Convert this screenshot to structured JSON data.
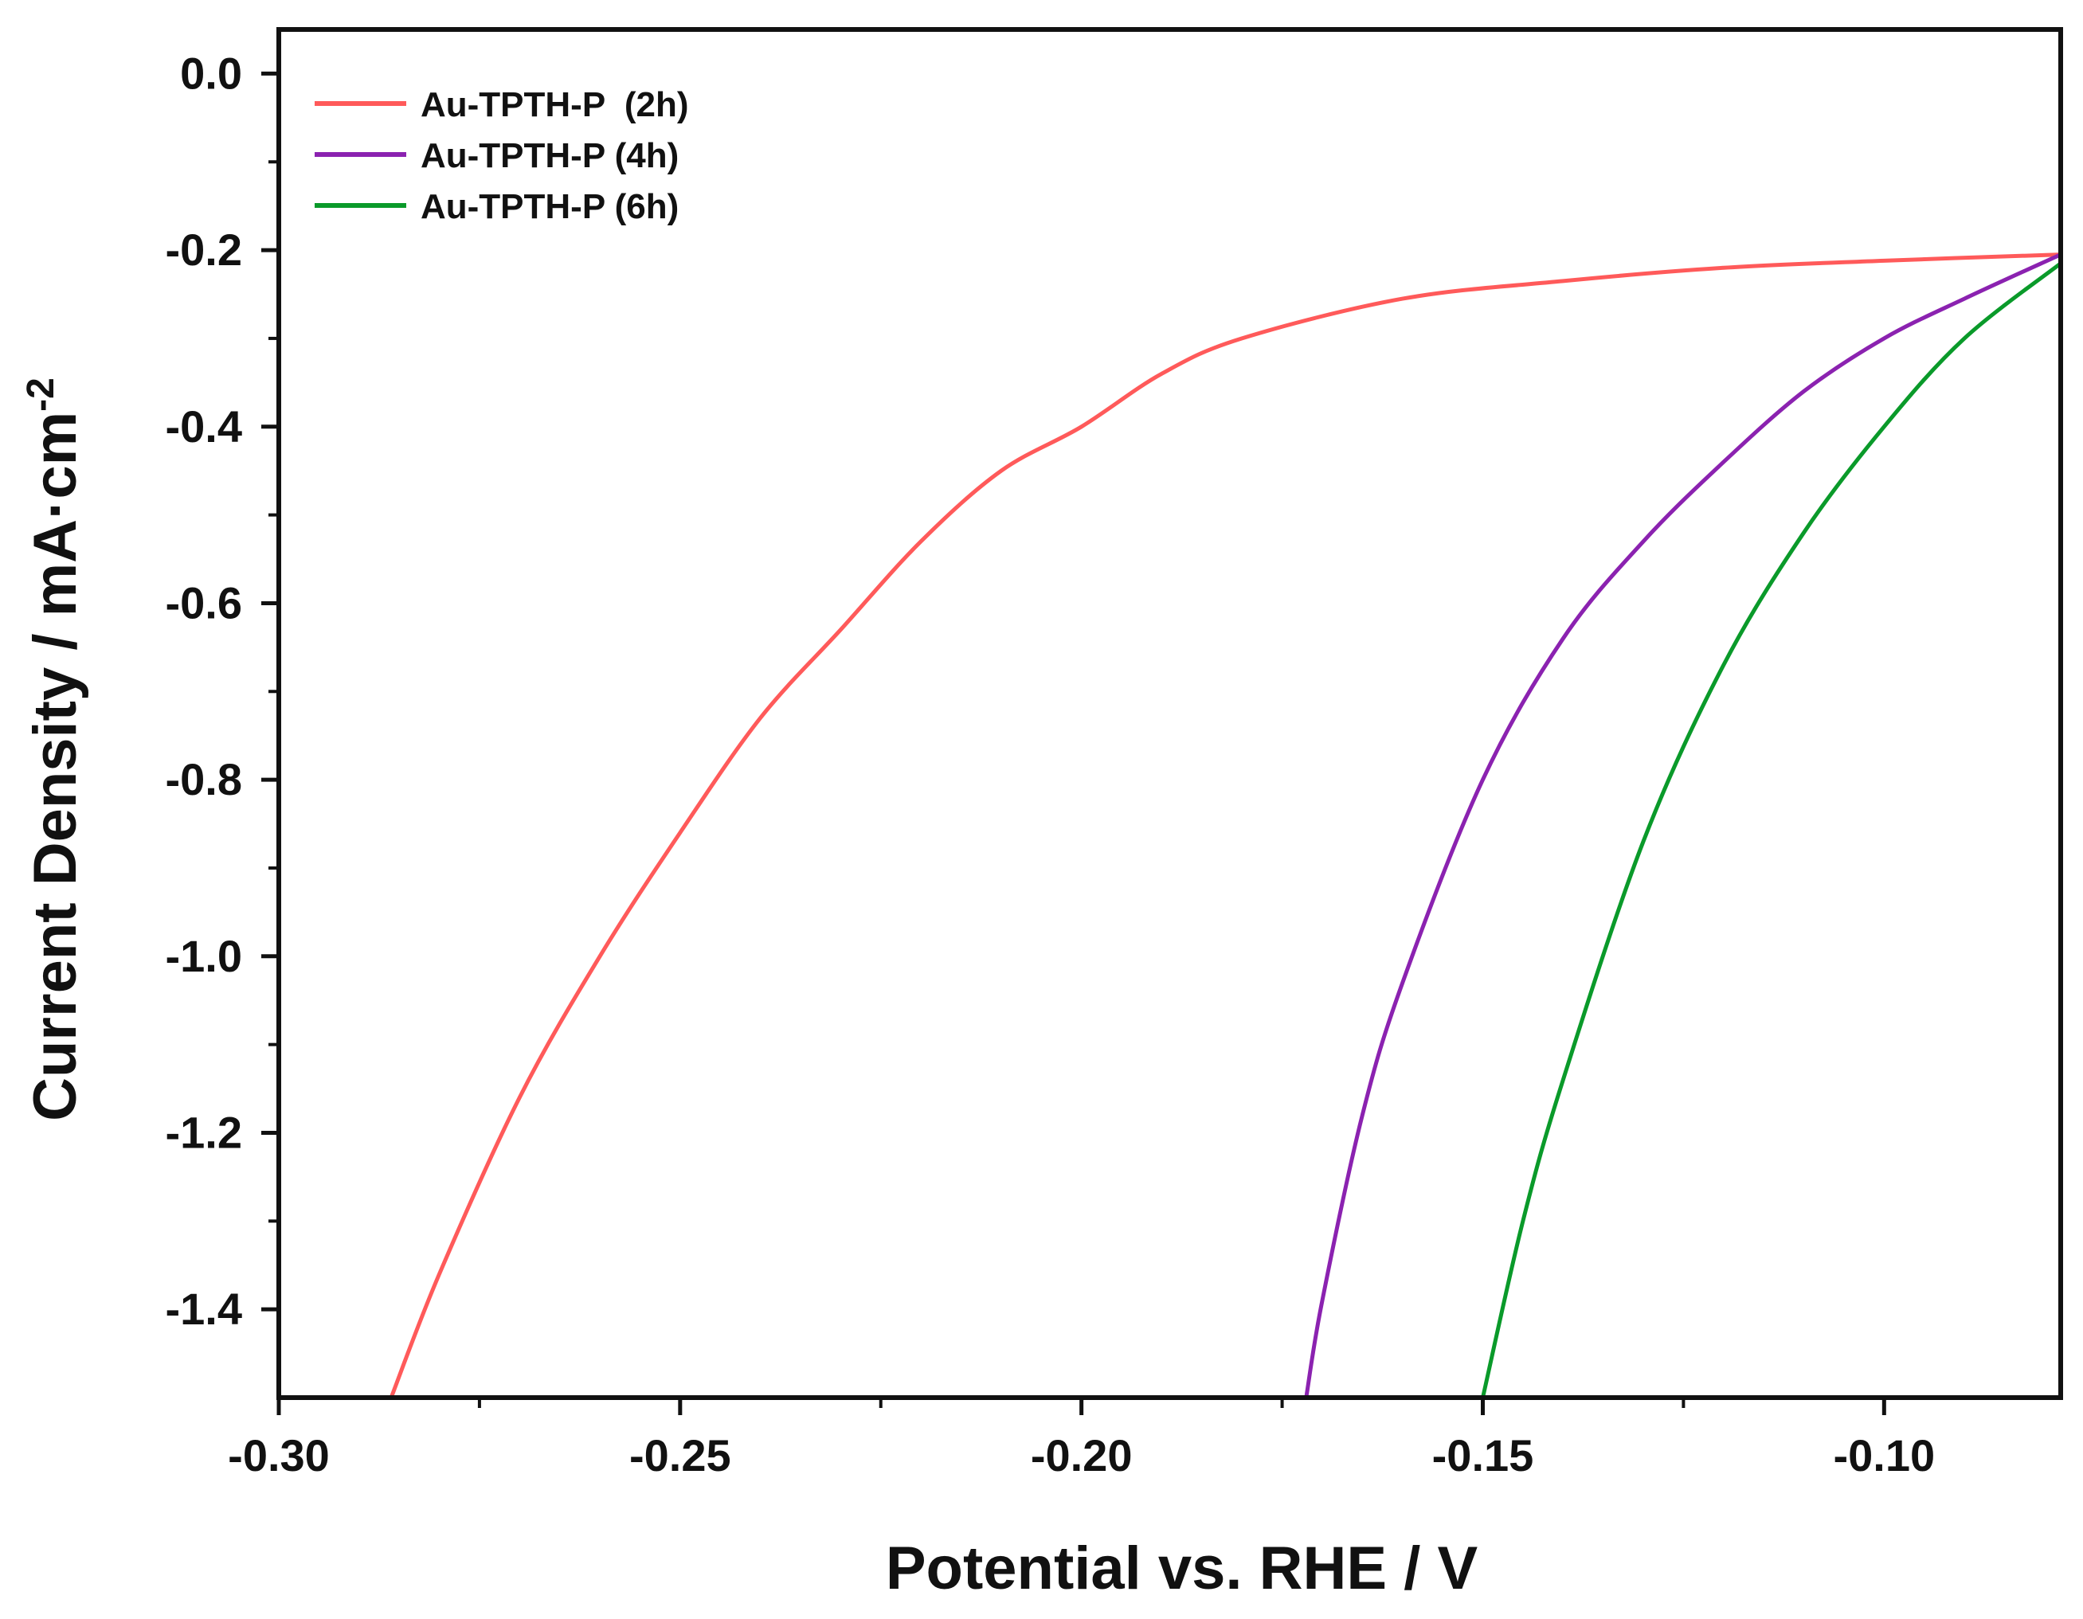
{
  "chart_data": {
    "type": "line",
    "title": "",
    "xlabel": "Potential vs. RHE / V",
    "ylabel": "Current Density / mA·cm",
    "ylabel_superscript": "-2",
    "xlim": [
      -0.3,
      -0.078
    ],
    "ylim": [
      -1.5,
      0.05
    ],
    "x_ticks": [
      {
        "value": -0.3,
        "label": "-0.30"
      },
      {
        "value": -0.25,
        "label": "-0.25"
      },
      {
        "value": -0.2,
        "label": "-0.20"
      },
      {
        "value": -0.15,
        "label": "-0.15"
      },
      {
        "value": -0.1,
        "label": "-0.10"
      }
    ],
    "x_minor_ticks": [
      -0.275,
      -0.225,
      -0.175,
      -0.125
    ],
    "y_ticks": [
      {
        "value": 0.0,
        "label": "0.0"
      },
      {
        "value": -0.2,
        "label": "-0.2"
      },
      {
        "value": -0.4,
        "label": "-0.4"
      },
      {
        "value": -0.6,
        "label": "-0.6"
      },
      {
        "value": -0.8,
        "label": "-0.8"
      },
      {
        "value": -1.0,
        "label": "-1.0"
      },
      {
        "value": -1.2,
        "label": "-1.2"
      },
      {
        "value": -1.4,
        "label": "-1.4"
      }
    ],
    "y_minor_ticks": [
      -0.1,
      -0.3,
      -0.5,
      -0.7,
      -0.9,
      -1.1,
      -1.3
    ],
    "legend_position": "top-left",
    "grid": false,
    "series": [
      {
        "name": "Au-TPTH-P  (2h)",
        "color": "#ff5a5a",
        "x": [
          -0.078,
          -0.1,
          -0.12,
          -0.14,
          -0.16,
          -0.18,
          -0.19,
          -0.2,
          -0.21,
          -0.22,
          -0.23,
          -0.24,
          -0.25,
          -0.26,
          -0.27,
          -0.28,
          -0.286
        ],
        "y": [
          -0.205,
          -0.212,
          -0.22,
          -0.235,
          -0.255,
          -0.3,
          -0.34,
          -0.4,
          -0.45,
          -0.53,
          -0.63,
          -0.73,
          -0.86,
          -1.0,
          -1.16,
          -1.36,
          -1.5
        ]
      },
      {
        "name": "Au-TPTH-P (4h)",
        "color": "#8b22b0",
        "x": [
          -0.078,
          -0.09,
          -0.1,
          -0.11,
          -0.12,
          -0.13,
          -0.14,
          -0.15,
          -0.16,
          -0.165,
          -0.17,
          -0.172
        ],
        "y": [
          -0.205,
          -0.255,
          -0.3,
          -0.36,
          -0.44,
          -0.53,
          -0.64,
          -0.8,
          -1.03,
          -1.18,
          -1.39,
          -1.5
        ]
      },
      {
        "name": "Au-TPTH-P (6h)",
        "color": "#0a9a2a",
        "x": [
          -0.078,
          -0.09,
          -0.1,
          -0.11,
          -0.12,
          -0.13,
          -0.14,
          -0.145,
          -0.15
        ],
        "y": [
          -0.215,
          -0.3,
          -0.4,
          -0.52,
          -0.67,
          -0.87,
          -1.14,
          -1.3,
          -1.5
        ]
      }
    ]
  }
}
